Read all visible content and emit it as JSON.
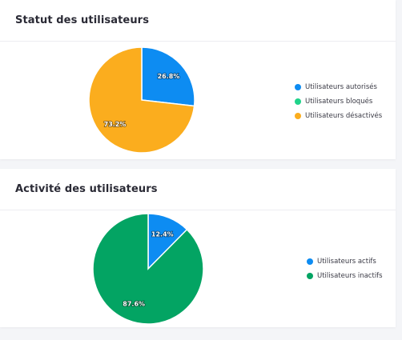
{
  "chart_data": [
    {
      "type": "pie",
      "title": "Statut des utilisateurs",
      "categories": [
        "Utilisateurs autorisés",
        "Utilisateurs bloqués",
        "Utilisateurs désactivés"
      ],
      "values": [
        26.8,
        0,
        73.2
      ],
      "data_labels": [
        "26.8%",
        "",
        "73.2%"
      ],
      "colors": [
        "#0d8cf2",
        "#1fd38a",
        "#fbad1e"
      ],
      "legend": "right"
    },
    {
      "type": "pie",
      "title": "Activité des utilisateurs",
      "categories": [
        "Utilisateurs actifs",
        "Utilisateurs inactifs"
      ],
      "values": [
        12.4,
        87.6
      ],
      "data_labels": [
        "12.4%",
        "87.6%"
      ],
      "colors": [
        "#0d8cf2",
        "#03a463"
      ],
      "legend": "right"
    }
  ]
}
